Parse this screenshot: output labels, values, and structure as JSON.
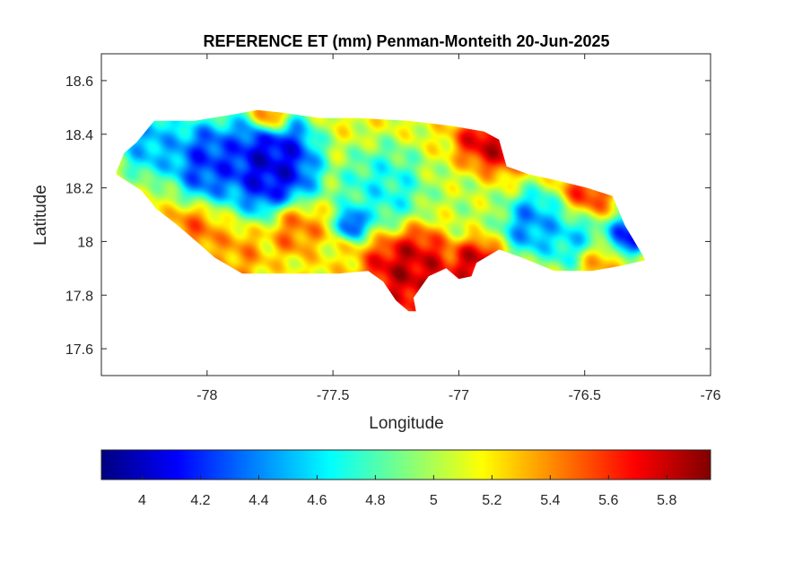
{
  "figure": {
    "title": "REFERENCE ET (mm) Penman-Monteith 20-Jun-2025"
  },
  "chart_data": {
    "type": "heatmap",
    "title": "REFERENCE ET (mm) Penman-Monteith 20-Jun-2025",
    "xlabel": "Longitude",
    "ylabel": "Latitude",
    "xlim": [
      -78.42,
      -76.0
    ],
    "ylim": [
      17.5,
      18.7
    ],
    "x_ticks": [
      {
        "value": -78,
        "label": "-78"
      },
      {
        "value": -77.5,
        "label": "-77.5"
      },
      {
        "value": -77,
        "label": "-77"
      },
      {
        "value": -76.5,
        "label": "-76.5"
      },
      {
        "value": -76,
        "label": "-76"
      }
    ],
    "y_ticks": [
      {
        "value": 17.6,
        "label": "17.6"
      },
      {
        "value": 17.8,
        "label": "17.8"
      },
      {
        "value": 18,
        "label": "18"
      },
      {
        "value": 18.2,
        "label": "18.2"
      },
      {
        "value": 18.4,
        "label": "18.4"
      },
      {
        "value": 18.6,
        "label": "18.6"
      }
    ],
    "grid": false,
    "colormap": "jet",
    "colorbar": {
      "placement": "bottom",
      "range": [
        3.86,
        5.95
      ],
      "ticks": [
        {
          "value": 4,
          "label": "4"
        },
        {
          "value": 4.2,
          "label": "4.2"
        },
        {
          "value": 4.4,
          "label": "4.4"
        },
        {
          "value": 4.6,
          "label": "4.6"
        },
        {
          "value": 4.8,
          "label": "4.8"
        },
        {
          "value": 5,
          "label": "5"
        },
        {
          "value": 5.2,
          "label": "5.2"
        },
        {
          "value": 5.4,
          "label": "5.4"
        },
        {
          "value": 5.6,
          "label": "5.6"
        },
        {
          "value": 5.8,
          "label": "5.8"
        }
      ]
    },
    "outline": [
      [
        -78.36,
        18.26
      ],
      [
        -78.33,
        18.33
      ],
      [
        -78.28,
        18.37
      ],
      [
        -78.21,
        18.45
      ],
      [
        -78.05,
        18.45
      ],
      [
        -77.92,
        18.47
      ],
      [
        -77.8,
        18.49
      ],
      [
        -77.7,
        18.48
      ],
      [
        -77.55,
        18.46
      ],
      [
        -77.4,
        18.46
      ],
      [
        -77.2,
        18.45
      ],
      [
        -77.02,
        18.43
      ],
      [
        -76.9,
        18.41
      ],
      [
        -76.84,
        18.38
      ],
      [
        -76.81,
        18.28
      ],
      [
        -76.72,
        18.25
      ],
      [
        -76.62,
        18.23
      ],
      [
        -76.49,
        18.2
      ],
      [
        -76.39,
        18.17
      ],
      [
        -76.34,
        18.06
      ],
      [
        -76.27,
        17.95
      ],
      [
        -76.26,
        17.93
      ],
      [
        -76.35,
        17.91
      ],
      [
        -76.47,
        17.89
      ],
      [
        -76.62,
        17.89
      ],
      [
        -76.75,
        17.94
      ],
      [
        -76.84,
        17.97
      ],
      [
        -76.93,
        17.92
      ],
      [
        -76.95,
        17.87
      ],
      [
        -77.0,
        17.86
      ],
      [
        -77.05,
        17.9
      ],
      [
        -77.12,
        17.87
      ],
      [
        -77.18,
        17.79
      ],
      [
        -77.17,
        17.74
      ],
      [
        -77.2,
        17.74
      ],
      [
        -77.25,
        17.78
      ],
      [
        -77.3,
        17.85
      ],
      [
        -77.36,
        17.89
      ],
      [
        -77.48,
        17.88
      ],
      [
        -77.62,
        17.88
      ],
      [
        -77.72,
        17.88
      ],
      [
        -77.86,
        17.88
      ],
      [
        -77.97,
        17.94
      ],
      [
        -78.03,
        17.99
      ],
      [
        -78.08,
        18.03
      ],
      [
        -78.13,
        18.07
      ],
      [
        -78.2,
        18.12
      ],
      [
        -78.26,
        18.19
      ],
      [
        -78.36,
        18.25
      ]
    ],
    "field_sources": [
      {
        "lon": -77.75,
        "lat": 18.29,
        "value": 3.9,
        "spread": 0.13
      },
      {
        "lon": -78.0,
        "lat": 18.3,
        "value": 4.1,
        "spread": 0.1
      },
      {
        "lon": -78.22,
        "lat": 18.37,
        "value": 4.4,
        "spread": 0.09
      },
      {
        "lon": -77.42,
        "lat": 18.07,
        "value": 4.0,
        "spread": 0.04
      },
      {
        "lon": -77.3,
        "lat": 18.18,
        "value": 4.6,
        "spread": 0.12
      },
      {
        "lon": -76.72,
        "lat": 18.07,
        "value": 4.3,
        "spread": 0.08
      },
      {
        "lon": -76.33,
        "lat": 18.02,
        "value": 4.0,
        "spread": 0.05
      },
      {
        "lon": -76.55,
        "lat": 18.04,
        "value": 4.5,
        "spread": 0.1
      },
      {
        "lon": -76.95,
        "lat": 18.16,
        "value": 5.0,
        "spread": 0.12
      },
      {
        "lon": -77.2,
        "lat": 17.9,
        "value": 5.9,
        "spread": 0.12
      },
      {
        "lon": -76.93,
        "lat": 17.92,
        "value": 5.9,
        "spread": 0.07
      },
      {
        "lon": -76.88,
        "lat": 18.35,
        "value": 5.9,
        "spread": 0.09
      },
      {
        "lon": -76.5,
        "lat": 18.16,
        "value": 5.8,
        "spread": 0.07
      },
      {
        "lon": -77.65,
        "lat": 18.05,
        "value": 5.5,
        "spread": 0.07
      },
      {
        "lon": -78.05,
        "lat": 18.03,
        "value": 5.5,
        "spread": 0.07
      },
      {
        "lon": -77.87,
        "lat": 17.95,
        "value": 5.4,
        "spread": 0.07
      },
      {
        "lon": -77.75,
        "lat": 18.47,
        "value": 5.7,
        "spread": 0.05
      },
      {
        "lon": -77.55,
        "lat": 17.9,
        "value": 5.2,
        "spread": 0.06
      },
      {
        "lon": -76.45,
        "lat": 17.92,
        "value": 5.4,
        "spread": 0.06
      }
    ]
  }
}
